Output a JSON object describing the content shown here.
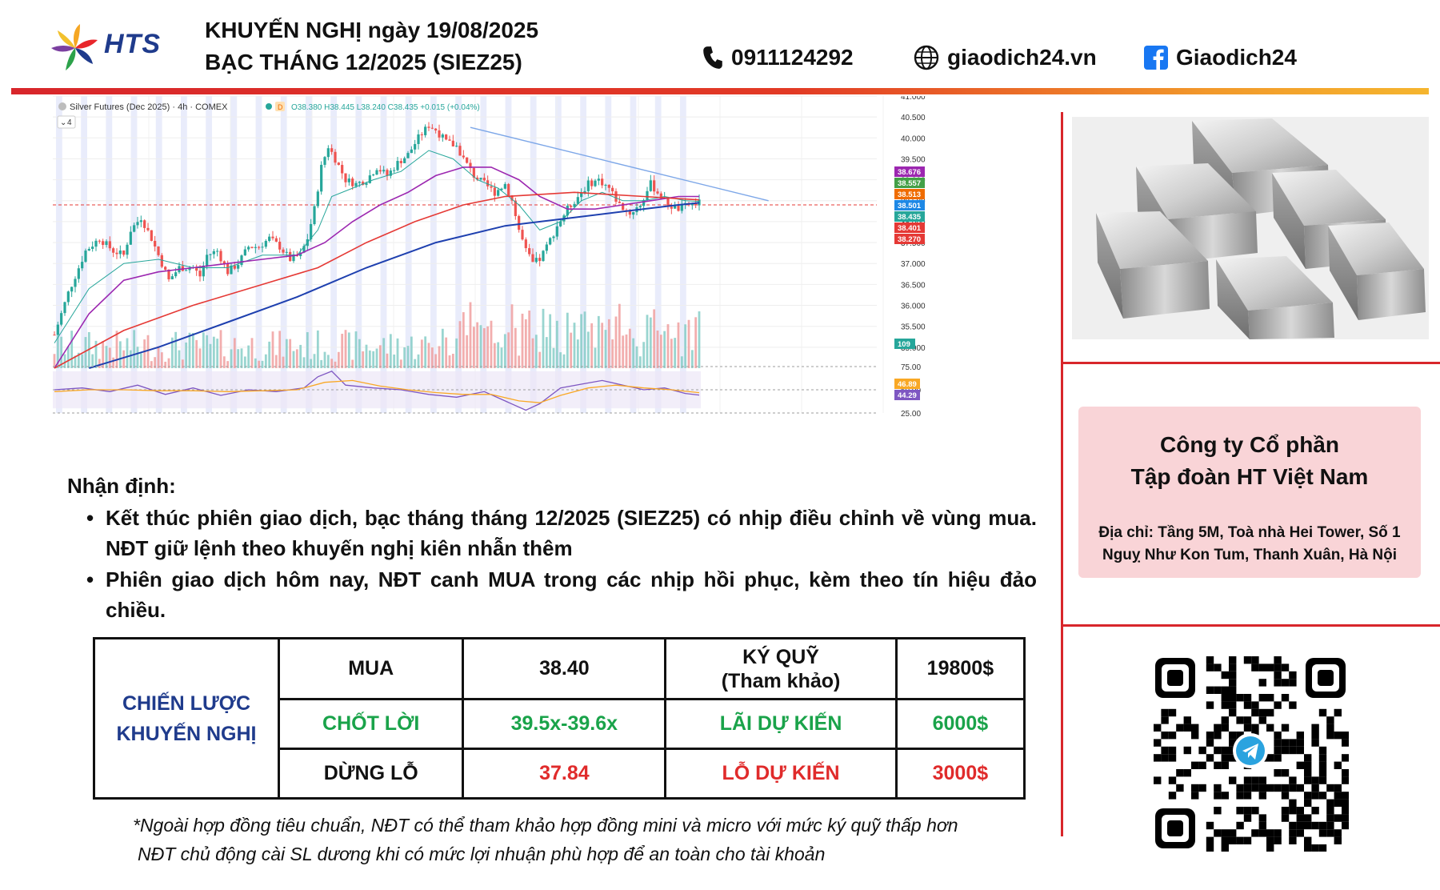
{
  "header": {
    "brand": "HTS",
    "title_line1": "KHUYẾN NGHỊ ngày 19/08/2025",
    "title_line2": "BẠC THÁNG 12/2025 (SIEZ25)",
    "phone": "0911124292",
    "website": "giaodich24.vn",
    "facebook": "Giaodich24",
    "icons": {
      "phone": "phone-icon",
      "web": "globe-icon",
      "facebook": "facebook-icon"
    }
  },
  "colors": {
    "accent_red": "#d8262b",
    "accent_orange": "#f5b52e",
    "strategy_blue": "#1f3b8c",
    "profit_green": "#1aa34a",
    "loss_red": "#e02b2b",
    "company_box_bg": "#f9d4d7"
  },
  "chart_data": {
    "type": "candlestick",
    "title": "Silver Futures (Dec 2025) · 4h · COMEX",
    "ohlc_label": "O38.380 H38.445 L38.240 C38.435 +0.015 (+0.04%)",
    "legend_extra": "4",
    "grid": true,
    "price_axis": {
      "ylim": [
        34.5,
        41.0
      ],
      "ticks": [
        "41.000",
        "40.500",
        "40.000",
        "39.500",
        "39.000",
        "38.500",
        "38.000",
        "37.500",
        "37.000",
        "36.500",
        "36.000",
        "35.500",
        "35.000"
      ]
    },
    "rsi_axis": {
      "ylim": [
        25,
        75
      ],
      "ticks": [
        "75.00",
        "50.00",
        "25.00"
      ]
    },
    "price_badges": [
      {
        "label": "38.676",
        "color": "#9c27b0"
      },
      {
        "label": "38.557",
        "color": "#43a047"
      },
      {
        "label": "38.513",
        "color": "#ef6c00"
      },
      {
        "label": "38.501",
        "color": "#1e88e5"
      },
      {
        "label": "38.435",
        "color": "#26a69a"
      },
      {
        "label": "38.401",
        "color": "#e53935"
      },
      {
        "label": "38.270",
        "color": "#e53935"
      }
    ],
    "volume_badge": {
      "label": "109",
      "color": "#26a69a"
    },
    "rsi_badges": [
      {
        "label": "46.89",
        "color": "#f9a825"
      },
      {
        "label": "44.29",
        "color": "#7e57c2"
      }
    ],
    "price_series": [
      {
        "name": "",
        "points": [
          [
            0,
            35.3
          ],
          [
            4,
            36.3
          ],
          [
            9,
            37.3
          ],
          [
            13,
            37.6
          ],
          [
            17,
            37.3
          ],
          [
            20,
            37.2
          ],
          [
            22,
            37.8
          ],
          [
            25,
            38.1
          ],
          [
            28,
            37.6
          ],
          [
            31,
            37.0
          ],
          [
            33,
            36.6
          ],
          [
            36,
            36.9
          ],
          [
            40,
            36.9
          ],
          [
            42,
            36.7
          ],
          [
            44,
            37.2
          ],
          [
            47,
            37.3
          ],
          [
            50,
            36.8
          ],
          [
            53,
            37.0
          ],
          [
            56,
            37.4
          ],
          [
            59,
            37.4
          ],
          [
            62,
            37.6
          ],
          [
            65,
            37.4
          ],
          [
            68,
            37.1
          ],
          [
            71,
            37.2
          ],
          [
            73,
            37.6
          ],
          [
            75,
            38.3
          ],
          [
            77,
            39.3
          ],
          [
            79,
            39.8
          ],
          [
            81,
            39.5
          ],
          [
            84,
            39.0
          ],
          [
            87,
            38.9
          ],
          [
            90,
            39.0
          ],
          [
            93,
            39.3
          ],
          [
            96,
            39.1
          ],
          [
            99,
            39.4
          ],
          [
            102,
            39.6
          ],
          [
            105,
            40.0
          ],
          [
            108,
            40.3
          ],
          [
            110,
            40.2
          ],
          [
            113,
            39.9
          ],
          [
            116,
            39.8
          ],
          [
            118,
            39.5
          ],
          [
            121,
            39.1
          ],
          [
            124,
            38.9
          ],
          [
            127,
            38.7
          ],
          [
            130,
            38.9
          ],
          [
            132,
            38.5
          ],
          [
            134,
            37.8
          ],
          [
            136,
            37.3
          ],
          [
            138,
            37.0
          ],
          [
            140,
            37.1
          ],
          [
            142,
            37.4
          ],
          [
            145,
            37.9
          ],
          [
            148,
            38.3
          ],
          [
            151,
            38.6
          ],
          [
            154,
            38.9
          ],
          [
            157,
            39.0
          ],
          [
            160,
            38.8
          ],
          [
            163,
            38.4
          ],
          [
            166,
            38.2
          ],
          [
            169,
            38.4
          ],
          [
            172,
            38.9
          ],
          [
            174,
            38.7
          ],
          [
            177,
            38.4
          ],
          [
            180,
            38.3
          ],
          [
            183,
            38.4
          ],
          [
            186,
            38.45
          ]
        ]
      },
      {
        "name": "",
        "points": [
          [
            0,
            35.1
          ],
          [
            10,
            36.4
          ],
          [
            20,
            37.0
          ],
          [
            30,
            37.1
          ],
          [
            40,
            36.9
          ],
          [
            50,
            36.9
          ],
          [
            60,
            37.2
          ],
          [
            70,
            37.2
          ],
          [
            76,
            37.8
          ],
          [
            80,
            38.6
          ],
          [
            86,
            38.8
          ],
          [
            92,
            39.0
          ],
          [
            100,
            39.2
          ],
          [
            108,
            39.7
          ],
          [
            115,
            39.5
          ],
          [
            122,
            39.0
          ],
          [
            128,
            38.8
          ],
          [
            134,
            38.4
          ],
          [
            140,
            37.8
          ],
          [
            146,
            38.0
          ],
          [
            152,
            38.5
          ],
          [
            158,
            38.7
          ],
          [
            164,
            38.5
          ],
          [
            170,
            38.5
          ],
          [
            176,
            38.6
          ],
          [
            182,
            38.5
          ],
          [
            186,
            38.48
          ]
        ]
      },
      {
        "name": "",
        "points": [
          [
            0,
            34.5
          ],
          [
            10,
            35.8
          ],
          [
            20,
            36.6
          ],
          [
            30,
            36.8
          ],
          [
            40,
            36.9
          ],
          [
            50,
            37.0
          ],
          [
            60,
            37.1
          ],
          [
            70,
            37.2
          ],
          [
            78,
            37.5
          ],
          [
            86,
            38.0
          ],
          [
            94,
            38.4
          ],
          [
            102,
            38.7
          ],
          [
            110,
            39.1
          ],
          [
            118,
            39.3
          ],
          [
            126,
            39.3
          ],
          [
            134,
            39.0
          ],
          [
            140,
            38.6
          ],
          [
            148,
            38.3
          ],
          [
            156,
            38.3
          ],
          [
            164,
            38.4
          ],
          [
            172,
            38.5
          ],
          [
            180,
            38.6
          ],
          [
            186,
            38.6
          ]
        ]
      },
      {
        "name": "",
        "points": [
          [
            0,
            34.5
          ],
          [
            20,
            35.4
          ],
          [
            40,
            36.0
          ],
          [
            60,
            36.5
          ],
          [
            76,
            36.9
          ],
          [
            90,
            37.5
          ],
          [
            104,
            38.0
          ],
          [
            118,
            38.4
          ],
          [
            130,
            38.6
          ],
          [
            140,
            38.65
          ],
          [
            150,
            38.7
          ],
          [
            160,
            38.65
          ],
          [
            170,
            38.6
          ],
          [
            180,
            38.55
          ],
          [
            186,
            38.52
          ]
        ]
      },
      {
        "name": "",
        "points": [
          [
            10,
            34.5
          ],
          [
            30,
            35.0
          ],
          [
            50,
            35.6
          ],
          [
            70,
            36.2
          ],
          [
            90,
            36.9
          ],
          [
            110,
            37.5
          ],
          [
            130,
            37.9
          ],
          [
            150,
            38.1
          ],
          [
            165,
            38.25
          ],
          [
            180,
            38.4
          ],
          [
            186,
            38.45
          ]
        ]
      }
    ],
    "trendline": [
      [
        120,
        40.25
      ],
      [
        206,
        38.5
      ]
    ],
    "reference_line": 38.4,
    "rsi_series": [
      {
        "name": "",
        "points": [
          [
            0,
            50
          ],
          [
            8,
            52
          ],
          [
            16,
            48
          ],
          [
            24,
            55
          ],
          [
            32,
            45
          ],
          [
            40,
            52
          ],
          [
            48,
            44
          ],
          [
            56,
            50
          ],
          [
            64,
            48
          ],
          [
            72,
            52
          ],
          [
            76,
            64
          ],
          [
            80,
            70
          ],
          [
            84,
            55
          ],
          [
            92,
            52
          ],
          [
            100,
            50
          ],
          [
            108,
            45
          ],
          [
            116,
            42
          ],
          [
            124,
            48
          ],
          [
            130,
            38
          ],
          [
            136,
            28
          ],
          [
            140,
            35
          ],
          [
            146,
            52
          ],
          [
            152,
            56
          ],
          [
            158,
            60
          ],
          [
            164,
            55
          ],
          [
            170,
            50
          ],
          [
            176,
            52
          ],
          [
            182,
            46
          ],
          [
            186,
            44.3
          ]
        ]
      },
      {
        "name": "",
        "points": [
          [
            0,
            48
          ],
          [
            10,
            50
          ],
          [
            20,
            50
          ],
          [
            30,
            49
          ],
          [
            40,
            49
          ],
          [
            50,
            48
          ],
          [
            60,
            49
          ],
          [
            70,
            50
          ],
          [
            78,
            58
          ],
          [
            86,
            60
          ],
          [
            94,
            54
          ],
          [
            102,
            50
          ],
          [
            110,
            47
          ],
          [
            118,
            45
          ],
          [
            126,
            45
          ],
          [
            134,
            38
          ],
          [
            140,
            36
          ],
          [
            146,
            44
          ],
          [
            154,
            52
          ],
          [
            162,
            55
          ],
          [
            170,
            52
          ],
          [
            178,
            50
          ],
          [
            186,
            46.9
          ]
        ]
      }
    ]
  },
  "analysis": {
    "heading": "Nhận định:",
    "bullets": [
      "Kết thúc phiên giao dịch, bạc tháng tháng 12/2025 (SIEZ25) có nhịp điều chỉnh về vùng mua. NĐT giữ lệnh theo khuyến nghị kiên nhẫn thêm",
      "Phiên giao dịch hôm nay, NĐT canh MUA trong các nhịp hồi phục, kèm theo tín hiệu đảo chiều."
    ]
  },
  "strategy": {
    "title_line1": "CHIẾN LƯỢC",
    "title_line2": "KHUYẾN NGHỊ",
    "buy_label": "MUA",
    "buy_price": "38.40",
    "margin_label_line1": "KÝ QUỸ",
    "margin_label_line2": "(Tham khảo)",
    "margin_value": "19800$",
    "take_profit_label": "CHỐT LỜI",
    "take_profit_value": "39.5x-39.6x",
    "expected_profit_label": "LÃI DỰ KIẾN",
    "expected_profit_value": "6000$",
    "stop_loss_label": "DỪNG LỖ",
    "stop_loss_value": "37.84",
    "expected_loss_label": "LỖ DỰ KIẾN",
    "expected_loss_value": "3000$"
  },
  "footnote": {
    "line1": "*Ngoài hợp đồng tiêu chuẩn, NĐT có thể tham khảo hợp đồng mini và micro với mức ký quỹ thấp hơn",
    "line2": "NĐT chủ động cài SL dương khi có mức lợi nhuận phù hợp để an toàn cho tài khoản"
  },
  "company": {
    "name_line1": "Công ty Cổ phần",
    "name_line2": "Tập đoàn HT Việt Nam",
    "address_line1": "Địa chỉ: Tầng 5M, Toà nhà Hei Tower, Số 1",
    "address_line2": "Nguỵ Như Kon Tum, Thanh Xuân, Hà Nội"
  },
  "images": {
    "silver": "silver-bars-image",
    "qr": "telegram-qr-code"
  }
}
